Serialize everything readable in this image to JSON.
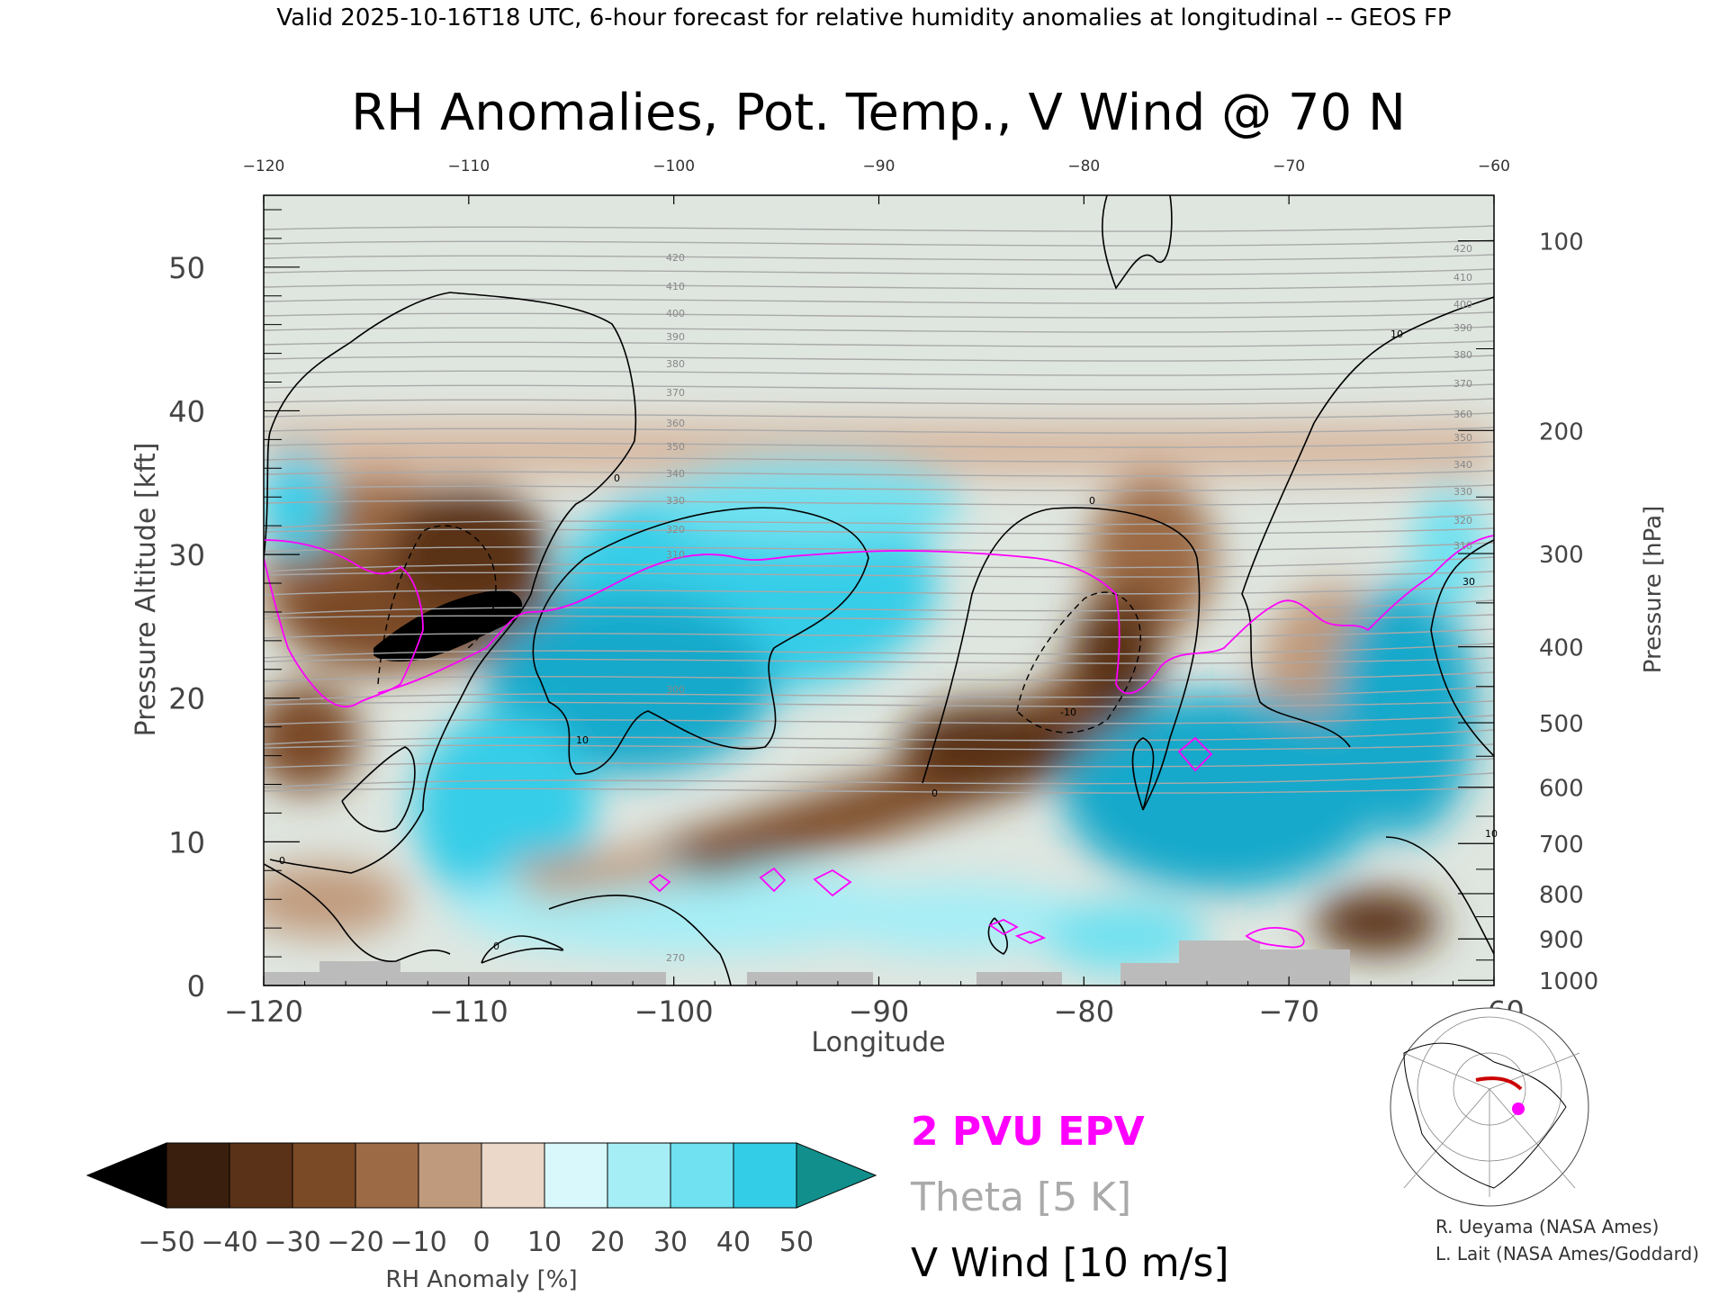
{
  "header": "Valid 2025-10-16T18 UTC, 6-hour forecast for relative humidity anomalies at longitudinal -- GEOS FP",
  "chart_data": {
    "type": "heatmap",
    "title": "RH Anomalies, Pot. Temp., V Wind @ 70 N",
    "xlabel": "Longitude",
    "ylabel": "Pressure Altitude [kft]",
    "y2label": "Pressure [hPa]",
    "xlim": [
      -120,
      -60
    ],
    "ylim": [
      0,
      55
    ],
    "x_ticks": [
      "−120",
      "−110",
      "−100",
      "−90",
      "−80",
      "−70",
      "−60"
    ],
    "x_ticks_top": [
      "−120",
      "−110",
      "−100",
      "−90",
      "−80",
      "−70",
      "−60"
    ],
    "y_ticks": [
      "0",
      "10",
      "20",
      "30",
      "40",
      "50"
    ],
    "pressure_ticks": [
      "100",
      "200",
      "300",
      "400",
      "500",
      "600",
      "700",
      "800",
      "900",
      "1000"
    ],
    "theta_labels": [
      "420",
      "410",
      "400",
      "390",
      "380",
      "370",
      "360",
      "350",
      "340",
      "330",
      "320",
      "310",
      "300",
      "270"
    ],
    "wind_labels": [
      "0",
      "10",
      "-10",
      "30"
    ],
    "colorbar": {
      "label": "RH Anomaly [%]",
      "ticks": [
        "−50",
        "−40",
        "−30",
        "−20",
        "−10",
        "0",
        "10",
        "20",
        "30",
        "40",
        "50"
      ],
      "colors": [
        "#3a1f0e",
        "#5a3217",
        "#7a4a26",
        "#9c6a45",
        "#c09a7c",
        "#ecd8c8",
        "#d8f8fb",
        "#a6eef6",
        "#6fe1f0",
        "#34cde8",
        "#14a9cb"
      ],
      "under_color": "#000000",
      "over_color": "#118f8c"
    },
    "legend": [
      {
        "label": "2 PVU EPV",
        "color": "#ff00ff"
      },
      {
        "label": "Theta [5 K]",
        "color": "#aaaaaa"
      },
      {
        "label": "V Wind [10 m/s]",
        "color": "#000000"
      }
    ]
  },
  "credits": [
    "R. Ueyama (NASA Ames)",
    "L. Lait (NASA Ames/Goddard)"
  ]
}
